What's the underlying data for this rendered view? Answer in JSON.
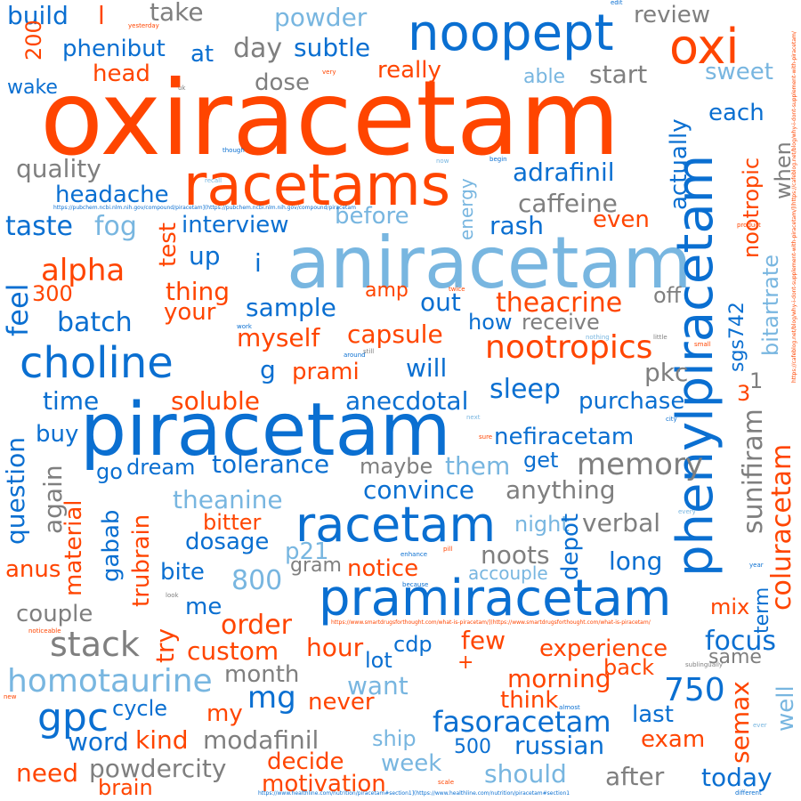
{
  "image_description": "word cloud of nootropic / racetam discussion terms",
  "palette": {
    "orange": "#ff4500",
    "blue": "#0a6fd1",
    "light_blue": "#78b6e0",
    "gray": "#7f7f7f"
  },
  "words": {
    "oxiracetam": "oxiracetam",
    "aniracetam": "aniracetam",
    "piracetam": "piracetam",
    "racetams": "racetams",
    "noopept": "noopept",
    "oxi": "oxi",
    "racetam": "racetam",
    "pramiracetam": "pramiracetam",
    "phenylpiracetam": "phenylpiracetam",
    "choline": "choline",
    "nootropics": "nootropics",
    "homotaurine": "homotaurine",
    "gpc": "gpc",
    "stack": "stack",
    "memory": "memory",
    "fasoracetam": "fasoracetam",
    "coluracetam": "coluracetam",
    "sunifiram": "sunifiram",
    "nefiracetam": "nefiracetam",
    "adrafinil": "adrafinil",
    "caffeine": "caffeine",
    "theacrine": "theacrine",
    "alpha": "alpha",
    "headache": "headache",
    "quality": "quality",
    "taste": "taste",
    "fog": "fog",
    "interview": "interview",
    "before": "before",
    "rash": "rash",
    "even": "even",
    "feel": "feel",
    "batch": "batch",
    "sample": "sample",
    "capsule": "capsule",
    "myself": "myself",
    "prami": "prami",
    "will": "will",
    "sleep": "sleep",
    "pkc": "pkc",
    "purchase": "purchase",
    "anecdotal": "anecdotal",
    "soluble": "soluble",
    "time": "time",
    "buy": "buy",
    "question": "question",
    "again": "again",
    "dream": "dream",
    "tolerance": "tolerance",
    "maybe": "maybe",
    "them": "them",
    "get": "get",
    "convince": "convince",
    "anything": "anything",
    "theanine": "theanine",
    "bitter": "bitter",
    "dosage": "dosage",
    "material": "material",
    "gabab": "gabab",
    "trubrain": "trubrain",
    "night": "night",
    "verbal": "verbal",
    "noots": "noots",
    "depot": "depot",
    "p21": "p21",
    "gram": "gram",
    "notice": "notice",
    "accouple": "accouple",
    "long": "long",
    "anus": "anus",
    "bite": "bite",
    "800": "800",
    "couple": "couple",
    "me": "me",
    "order": "order",
    "mix": "mix",
    "term": "term",
    "try": "try",
    "custom": "custom",
    "hour": "hour",
    "cdp": "cdp",
    "few": "few",
    "experience": "experience",
    "focus": "focus",
    "same": "same",
    "month": "month",
    "lot": "lot",
    "plus": "+",
    "back": "back",
    "morning": "morning",
    "mg": "mg",
    "want": "want",
    "750": "750",
    "semax": "semax",
    "well": "well",
    "my": "my",
    "never": "never",
    "think": "think",
    "last": "last",
    "cycle": "cycle",
    "word": "word",
    "kind": "kind",
    "modafinil": "modafinil",
    "ship": "ship",
    "500": "500",
    "russian": "russian",
    "exam": "exam",
    "need": "need",
    "powdercity": "powdercity",
    "decide": "decide",
    "week": "week",
    "should": "should",
    "after": "after",
    "today": "today",
    "brain": "brain",
    "motivation": "motivation",
    "build": "build",
    "l": "l",
    "take": "take",
    "powder": "powder",
    "review": "review",
    "200": "200",
    "phenibut": "phenibut",
    "at": "at",
    "day": "day",
    "subtle": "subtle",
    "head": "head",
    "really": "really",
    "sweet": "sweet",
    "wake": "wake",
    "dose": "dose",
    "able": "able",
    "start": "start",
    "actually": "actually",
    "each": "each",
    "nootropic": "nootropic",
    "when": "when",
    "energy": "energy",
    "test": "test",
    "up": "up",
    "i": "i",
    "300": "300",
    "thing": "thing",
    "your": "your",
    "amp": "amp",
    "out": "out",
    "how": "how",
    "receive": "receive",
    "off": "off",
    "bitartrate": "bitartrate",
    "sgs742": "sgs742",
    "g": "g",
    "one": "1",
    "three": "3",
    "go": "go",
    "edit": "edit",
    "yesterday": "yesterday",
    "very": "very",
    "uk": "uk",
    "though": "though",
    "recall": "recall",
    "now": "now",
    "begin": "begin",
    "product": "product",
    "twice": "twice",
    "work": "work",
    "around": "around",
    "still": "still",
    "little": "little",
    "small": "small",
    "nothing": "nothing",
    "next": "next",
    "city": "city",
    "sure": "sure",
    "every": "every",
    "enhance": "enhance",
    "pill": "pill",
    "because": "because",
    "look": "look",
    "noticeable": "noticeable",
    "year": "year",
    "sublingually": "sublingually",
    "almost": "almost",
    "ever": "ever",
    "scale": "scale",
    "different": "different",
    "new": "new",
    "url_pubchem": "https://pubchem.ncbi.nlm.nih.gov/compound/piracetam](https://pubchem.ncbi.nlm.nih.gov/compound/piracetam",
    "url_smartdrugs": "https://www.smartdrugsforthought.com/what-is-piracetam/](https://www.smartdrugsforthought.com/what-is-piracetam/",
    "url_healthline": "https://www.healthline.com/nutrition/piracetam#section1](https://www.healthline.com/nutrition/piracetam#section1",
    "url_cafeblog": "https://cafeblog.net/blog/why-i-dont-supplement-with-piracetam/](https://cafeblog.net/blog/why-i-dont-supplement-with-piracetam/"
  }
}
